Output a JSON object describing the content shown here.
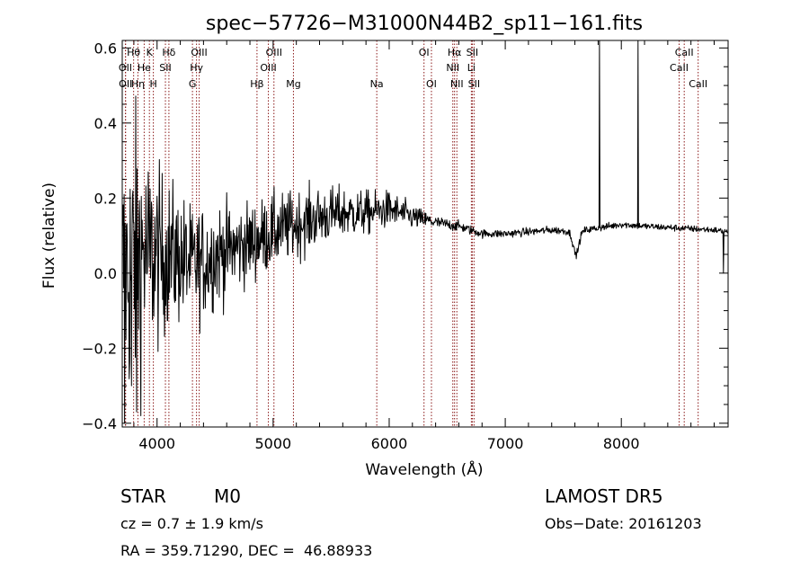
{
  "chart_data": {
    "type": "line",
    "title": "spec−57726−M31000N44B2_sp11−161.fits",
    "xlabel": "Wavelength (Å)",
    "ylabel": "Flux (relative)",
    "xlim": [
      3700,
      8920
    ],
    "ylim": [
      -0.41,
      0.62
    ],
    "x_ticks": [
      4000,
      5000,
      6000,
      7000,
      8000
    ],
    "y_ticks": [
      -0.4,
      -0.2,
      0.0,
      0.2,
      0.4,
      0.6
    ],
    "y_tick_labels": [
      "−0.4",
      "−0.2",
      "0.0",
      "0.2",
      "0.4",
      "0.6"
    ],
    "grid": false,
    "series_color": "#000000",
    "line_marker_color": "#8b1a1a",
    "spectrum_anchors": [
      [
        3700,
        0.02
      ],
      [
        3750,
        0.0
      ],
      [
        3800,
        0.04
      ],
      [
        3850,
        0.06
      ],
      [
        3900,
        0.05
      ],
      [
        4000,
        0.04
      ],
      [
        4100,
        0.05
      ],
      [
        4200,
        0.04
      ],
      [
        4300,
        0.02
      ],
      [
        4400,
        0.03
      ],
      [
        4500,
        0.05
      ],
      [
        4600,
        0.06
      ],
      [
        4800,
        0.08
      ],
      [
        5000,
        0.11
      ],
      [
        5200,
        0.13
      ],
      [
        5400,
        0.15
      ],
      [
        5600,
        0.16
      ],
      [
        5800,
        0.16
      ],
      [
        6000,
        0.17
      ],
      [
        6200,
        0.15
      ],
      [
        6400,
        0.135
      ],
      [
        6600,
        0.125
      ],
      [
        6800,
        0.105
      ],
      [
        7000,
        0.105
      ],
      [
        7200,
        0.11
      ],
      [
        7400,
        0.115
      ],
      [
        7600,
        0.11
      ],
      [
        7800,
        0.12
      ],
      [
        8000,
        0.13
      ],
      [
        8200,
        0.125
      ],
      [
        8500,
        0.12
      ],
      [
        8800,
        0.115
      ],
      [
        8920,
        0.11
      ]
    ],
    "spectrum_noise_anchors": [
      [
        3700,
        0.22
      ],
      [
        3800,
        0.28
      ],
      [
        3900,
        0.2
      ],
      [
        4100,
        0.14
      ],
      [
        4300,
        0.11
      ],
      [
        4500,
        0.1
      ],
      [
        4700,
        0.08
      ],
      [
        5000,
        0.07
      ],
      [
        5300,
        0.06
      ],
      [
        5700,
        0.045
      ],
      [
        6000,
        0.035
      ],
      [
        6400,
        0.012
      ],
      [
        6800,
        0.008
      ],
      [
        8900,
        0.006
      ]
    ],
    "absorption_features": [
      {
        "center": 7610,
        "width": 35,
        "depth": 0.06
      }
    ],
    "emission_spikes": [
      {
        "x": 7813,
        "peak": 0.62
      },
      {
        "x": 8145,
        "peak": 0.62
      },
      {
        "x": 3818,
        "peak": 0.48
      },
      {
        "x": 3842,
        "peak": 0.5
      },
      {
        "x": 3858,
        "peak": 0.42
      }
    ],
    "dropouts": [
      {
        "x": 3720,
        "value": -0.4
      },
      {
        "x": 3780,
        "value": -0.3
      },
      {
        "x": 3825,
        "value": -0.37
      },
      {
        "x": 3860,
        "value": -0.38
      },
      {
        "x": 8880,
        "value": 0.0
      }
    ],
    "spectral_lines": [
      {
        "label": "Hθ",
        "x": 3798,
        "row": 0
      },
      {
        "label": "K",
        "x": 3934,
        "row": 0
      },
      {
        "label": "Hδ",
        "x": 4102,
        "row": 0
      },
      {
        "label": "OIII",
        "x": 4363,
        "row": 0
      },
      {
        "label": "OIII",
        "x": 5007,
        "row": 0
      },
      {
        "label": "OI",
        "x": 6300,
        "row": 0
      },
      {
        "label": "Hα",
        "x": 6563,
        "row": 0
      },
      {
        "label": "SII",
        "x": 6716,
        "row": 0
      },
      {
        "label": "CaII",
        "x": 8542,
        "row": 0
      },
      {
        "label": "OII",
        "x": 3727,
        "row": 1
      },
      {
        "label": "He",
        "x": 3889,
        "row": 1
      },
      {
        "label": "SII",
        "x": 4072,
        "row": 1
      },
      {
        "label": "Hγ",
        "x": 4340,
        "row": 1
      },
      {
        "label": "OIII",
        "x": 4959,
        "row": 1
      },
      {
        "label": "NII",
        "x": 6548,
        "row": 1
      },
      {
        "label": "Li",
        "x": 6708,
        "row": 1
      },
      {
        "label": "CaII",
        "x": 8498,
        "row": 1
      },
      {
        "label": "OII",
        "x": 3729,
        "row": 2
      },
      {
        "label": "Hη",
        "x": 3835,
        "row": 2
      },
      {
        "label": "H",
        "x": 3968,
        "row": 2
      },
      {
        "label": "G",
        "x": 4305,
        "row": 2
      },
      {
        "label": "Hβ",
        "x": 4861,
        "row": 2
      },
      {
        "label": "Mg",
        "x": 5175,
        "row": 2
      },
      {
        "label": "Na",
        "x": 5893,
        "row": 2
      },
      {
        "label": "OI",
        "x": 6364,
        "row": 2
      },
      {
        "label": "NII",
        "x": 6583,
        "row": 2
      },
      {
        "label": "SII",
        "x": 6731,
        "row": 2
      },
      {
        "label": "CaII",
        "x": 8662,
        "row": 2
      }
    ]
  },
  "info": {
    "class_label": "STAR",
    "subclass": "M0",
    "survey": "LAMOST DR5",
    "cz_text": "cz = 0.7 ± 1.9 km/s",
    "obs_date": "Obs−Date: 20161203",
    "coords": "RA = 359.71290, DEC =  46.88933"
  }
}
